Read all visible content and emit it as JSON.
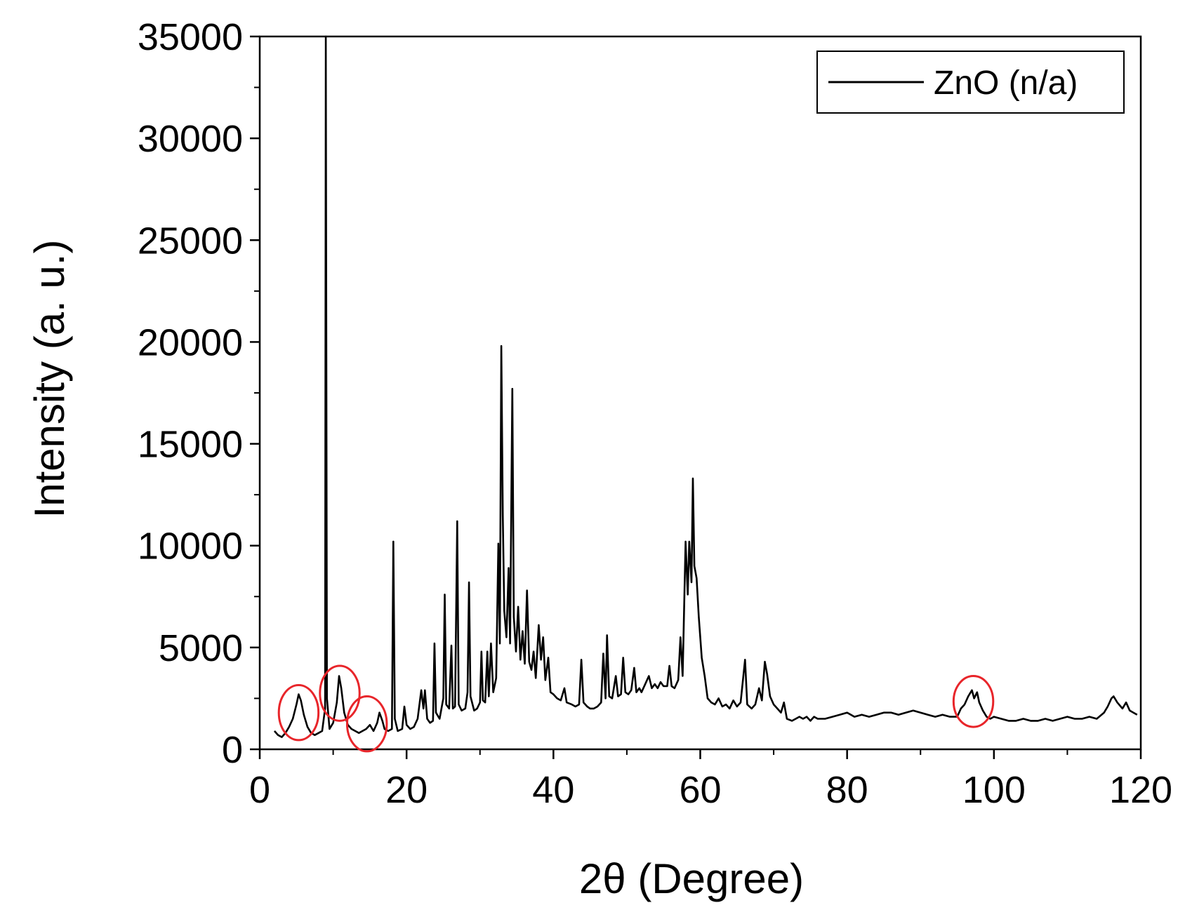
{
  "chart_data": {
    "type": "line",
    "title": "",
    "xlabel": "2θ (Degree)",
    "ylabel": "Intensity (a. u.)",
    "xlim": [
      0,
      120
    ],
    "ylim": [
      0,
      35000
    ],
    "xticks": [
      0,
      20,
      40,
      60,
      80,
      100,
      120
    ],
    "yticks": [
      0,
      5000,
      10000,
      15000,
      20000,
      25000,
      30000,
      35000
    ],
    "grid": false,
    "legend_position": "top-right",
    "series": [
      {
        "name": "ZnO (n/a)",
        "color": "#000000",
        "points": [
          [
            2,
            900
          ],
          [
            2.5,
            700
          ],
          [
            3,
            600
          ],
          [
            3.5,
            800
          ],
          [
            4,
            1100
          ],
          [
            4.5,
            1500
          ],
          [
            5,
            2200
          ],
          [
            5.3,
            2700
          ],
          [
            5.6,
            2400
          ],
          [
            6,
            1700
          ],
          [
            6.5,
            1100
          ],
          [
            7,
            800
          ],
          [
            7.5,
            700
          ],
          [
            8,
            800
          ],
          [
            8.5,
            900
          ],
          [
            8.9,
            2000
          ],
          [
            9.0,
            35000
          ],
          [
            9.15,
            2500
          ],
          [
            9.5,
            1000
          ],
          [
            10,
            1300
          ],
          [
            10.5,
            2300
          ],
          [
            10.8,
            3600
          ],
          [
            11.1,
            3000
          ],
          [
            11.5,
            1800
          ],
          [
            12,
            1200
          ],
          [
            12.5,
            1000
          ],
          [
            13,
            900
          ],
          [
            13.5,
            800
          ],
          [
            14,
            900
          ],
          [
            14.5,
            1000
          ],
          [
            15,
            1200
          ],
          [
            15.5,
            900
          ],
          [
            16,
            1300
          ],
          [
            16.3,
            1800
          ],
          [
            16.7,
            1400
          ],
          [
            17,
            1000
          ],
          [
            17.5,
            900
          ],
          [
            18,
            1000
          ],
          [
            18.2,
            10200
          ],
          [
            18.4,
            1500
          ],
          [
            18.8,
            900
          ],
          [
            19.4,
            1000
          ],
          [
            19.7,
            2100
          ],
          [
            20,
            1200
          ],
          [
            20.5,
            1000
          ],
          [
            21,
            1100
          ],
          [
            21.5,
            1500
          ],
          [
            22,
            2900
          ],
          [
            22.3,
            2000
          ],
          [
            22.5,
            2900
          ],
          [
            22.8,
            1500
          ],
          [
            23.2,
            1300
          ],
          [
            23.6,
            1400
          ],
          [
            23.8,
            5200
          ],
          [
            24,
            1800
          ],
          [
            24.5,
            1500
          ],
          [
            25,
            2500
          ],
          [
            25.2,
            7600
          ],
          [
            25.4,
            2200
          ],
          [
            25.8,
            2000
          ],
          [
            26.1,
            5100
          ],
          [
            26.3,
            2000
          ],
          [
            26.6,
            2100
          ],
          [
            26.9,
            11200
          ],
          [
            27.1,
            2200
          ],
          [
            27.5,
            1900
          ],
          [
            28,
            2000
          ],
          [
            28.3,
            2800
          ],
          [
            28.5,
            8200
          ],
          [
            28.7,
            2600
          ],
          [
            29.2,
            1900
          ],
          [
            29.6,
            2000
          ],
          [
            30,
            2300
          ],
          [
            30.2,
            4800
          ],
          [
            30.4,
            2400
          ],
          [
            30.7,
            2300
          ],
          [
            31,
            4800
          ],
          [
            31.2,
            2600
          ],
          [
            31.5,
            5200
          ],
          [
            31.8,
            2800
          ],
          [
            32.2,
            3500
          ],
          [
            32.5,
            10100
          ],
          [
            32.7,
            5200
          ],
          [
            32.9,
            19800
          ],
          [
            33.1,
            11500
          ],
          [
            33.3,
            6800
          ],
          [
            33.6,
            5500
          ],
          [
            33.9,
            8900
          ],
          [
            34.1,
            5200
          ],
          [
            34.4,
            17700
          ],
          [
            34.6,
            6500
          ],
          [
            34.9,
            4800
          ],
          [
            35.2,
            7000
          ],
          [
            35.5,
            4400
          ],
          [
            35.8,
            5800
          ],
          [
            36.1,
            4200
          ],
          [
            36.4,
            7800
          ],
          [
            36.7,
            4300
          ],
          [
            37,
            3900
          ],
          [
            37.3,
            4800
          ],
          [
            37.6,
            3500
          ],
          [
            38,
            6100
          ],
          [
            38.3,
            4400
          ],
          [
            38.6,
            5500
          ],
          [
            38.9,
            3400
          ],
          [
            39.3,
            4500
          ],
          [
            39.6,
            2800
          ],
          [
            40,
            2700
          ],
          [
            40.5,
            2500
          ],
          [
            41,
            2400
          ],
          [
            41.5,
            3000
          ],
          [
            41.8,
            2300
          ],
          [
            42.5,
            2200
          ],
          [
            43,
            2100
          ],
          [
            43.5,
            2200
          ],
          [
            43.8,
            4400
          ],
          [
            44.1,
            2300
          ],
          [
            44.6,
            2100
          ],
          [
            45,
            2000
          ],
          [
            45.5,
            2000
          ],
          [
            46,
            2100
          ],
          [
            46.5,
            2300
          ],
          [
            46.8,
            4700
          ],
          [
            47.1,
            2500
          ],
          [
            47.3,
            5600
          ],
          [
            47.6,
            2600
          ],
          [
            48,
            2500
          ],
          [
            48.5,
            3600
          ],
          [
            48.8,
            2600
          ],
          [
            49.2,
            2700
          ],
          [
            49.5,
            4500
          ],
          [
            49.8,
            2800
          ],
          [
            50.2,
            2700
          ],
          [
            50.6,
            2900
          ],
          [
            51,
            4000
          ],
          [
            51.3,
            2800
          ],
          [
            51.7,
            3000
          ],
          [
            52,
            2800
          ],
          [
            52.5,
            3200
          ],
          [
            53,
            3600
          ],
          [
            53.4,
            3000
          ],
          [
            53.8,
            3200
          ],
          [
            54.2,
            3000
          ],
          [
            54.6,
            3300
          ],
          [
            55,
            3100
          ],
          [
            55.5,
            3100
          ],
          [
            55.8,
            4100
          ],
          [
            56.1,
            3100
          ],
          [
            56.5,
            3000
          ],
          [
            57,
            3400
          ],
          [
            57.3,
            5500
          ],
          [
            57.6,
            3600
          ],
          [
            58,
            10200
          ],
          [
            58.3,
            7600
          ],
          [
            58.5,
            10200
          ],
          [
            58.8,
            8200
          ],
          [
            59,
            13300
          ],
          [
            59.2,
            9000
          ],
          [
            59.5,
            8400
          ],
          [
            59.8,
            6500
          ],
          [
            60.2,
            4500
          ],
          [
            60.6,
            3600
          ],
          [
            61,
            2500
          ],
          [
            61.5,
            2300
          ],
          [
            62,
            2200
          ],
          [
            62.5,
            2500
          ],
          [
            63,
            2100
          ],
          [
            63.5,
            2200
          ],
          [
            64,
            2000
          ],
          [
            64.5,
            2400
          ],
          [
            65,
            2100
          ],
          [
            65.5,
            2300
          ],
          [
            66.1,
            4400
          ],
          [
            66.4,
            2200
          ],
          [
            67,
            2000
          ],
          [
            67.5,
            2200
          ],
          [
            68,
            3000
          ],
          [
            68.4,
            2400
          ],
          [
            68.8,
            4300
          ],
          [
            69.1,
            3700
          ],
          [
            69.5,
            2600
          ],
          [
            70,
            2200
          ],
          [
            70.5,
            2000
          ],
          [
            71,
            1800
          ],
          [
            71.4,
            2300
          ],
          [
            71.8,
            1500
          ],
          [
            72.5,
            1400
          ],
          [
            73,
            1500
          ],
          [
            73.5,
            1600
          ],
          [
            74,
            1500
          ],
          [
            74.5,
            1600
          ],
          [
            75,
            1400
          ],
          [
            75.5,
            1600
          ],
          [
            76,
            1500
          ],
          [
            77,
            1500
          ],
          [
            78,
            1600
          ],
          [
            79,
            1700
          ],
          [
            80,
            1800
          ],
          [
            81,
            1600
          ],
          [
            82,
            1700
          ],
          [
            83,
            1600
          ],
          [
            84,
            1700
          ],
          [
            85,
            1800
          ],
          [
            86,
            1800
          ],
          [
            87,
            1700
          ],
          [
            88,
            1800
          ],
          [
            89,
            1900
          ],
          [
            90,
            1800
          ],
          [
            91,
            1700
          ],
          [
            92,
            1600
          ],
          [
            93,
            1700
          ],
          [
            94,
            1600
          ],
          [
            95,
            1600
          ],
          [
            95.5,
            2000
          ],
          [
            96,
            2200
          ],
          [
            96.5,
            2600
          ],
          [
            97,
            2900
          ],
          [
            97.3,
            2500
          ],
          [
            97.7,
            2800
          ],
          [
            98,
            2300
          ],
          [
            98.5,
            1900
          ],
          [
            99,
            1600
          ],
          [
            99.5,
            1500
          ],
          [
            100,
            1600
          ],
          [
            101,
            1500
          ],
          [
            102,
            1400
          ],
          [
            103,
            1400
          ],
          [
            104,
            1500
          ],
          [
            105,
            1400
          ],
          [
            106,
            1400
          ],
          [
            107,
            1500
          ],
          [
            108,
            1400
          ],
          [
            109,
            1500
          ],
          [
            110,
            1600
          ],
          [
            111,
            1500
          ],
          [
            112,
            1500
          ],
          [
            113,
            1600
          ],
          [
            114,
            1500
          ],
          [
            115,
            1800
          ],
          [
            115.5,
            2100
          ],
          [
            116,
            2500
          ],
          [
            116.3,
            2600
          ],
          [
            116.8,
            2300
          ],
          [
            117.5,
            2000
          ],
          [
            118,
            2300
          ],
          [
            118.5,
            1900
          ],
          [
            119,
            1800
          ],
          [
            119.5,
            1700
          ]
        ]
      }
    ],
    "annotations": [
      {
        "shape": "ellipse",
        "color": "#e8252a",
        "cx": 5.3,
        "cy": 1800,
        "rx": 2.7,
        "ry": 1350
      },
      {
        "shape": "ellipse",
        "color": "#e8252a",
        "cx": 10.9,
        "cy": 2750,
        "rx": 2.7,
        "ry": 1350
      },
      {
        "shape": "ellipse",
        "color": "#e8252a",
        "cx": 14.6,
        "cy": 1250,
        "rx": 2.7,
        "ry": 1350
      },
      {
        "shape": "ellipse",
        "color": "#e8252a",
        "cx": 97.2,
        "cy": 2350,
        "rx": 2.7,
        "ry": 1250
      }
    ]
  }
}
